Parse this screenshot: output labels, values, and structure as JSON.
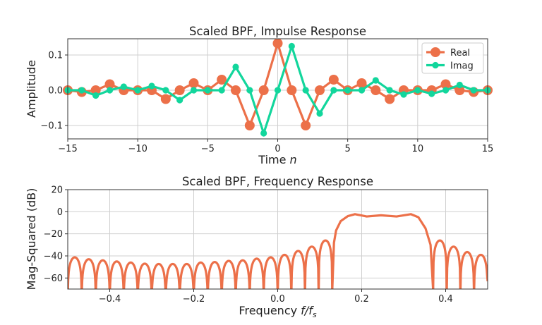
{
  "chart_data": [
    {
      "type": "line",
      "title": "Scaled BPF, Impulse Response",
      "xlabel_text": "Time",
      "xlabel_var": "n",
      "ylabel": "Amplitude",
      "xlim": [
        -15,
        15
      ],
      "ylim": [
        -0.138,
        0.146
      ],
      "xticks": [
        -15,
        -10,
        -5,
        0,
        5,
        10,
        15
      ],
      "xtick_labels": [
        "−15",
        "−10",
        "−5",
        "0",
        "5",
        "10",
        "15"
      ],
      "yticks": [
        -0.1,
        0.0,
        0.1
      ],
      "ytick_labels": [
        "−0.1",
        "0.0",
        "0.1"
      ],
      "grid": true,
      "legend_position": "top-right",
      "x": [
        -15,
        -14,
        -13,
        -12,
        -11,
        -10,
        -9,
        -8,
        -7,
        -6,
        -5,
        -4,
        -3,
        -2,
        -1,
        0,
        1,
        2,
        3,
        4,
        5,
        6,
        7,
        8,
        9,
        10,
        11,
        12,
        13,
        14,
        15
      ],
      "series": [
        {
          "name": "Real",
          "color": "#EC7049",
          "marker_size": "large",
          "values": [
            0,
            -0.005,
            0,
            0.017,
            0,
            0,
            0,
            -0.025,
            0,
            0.02,
            0,
            0.03,
            0,
            -0.1,
            0,
            0.133,
            0,
            -0.1,
            0,
            0.03,
            0,
            0.02,
            0,
            -0.025,
            0,
            0,
            0,
            0.017,
            0,
            -0.005,
            0
          ]
        },
        {
          "name": "Imag",
          "color": "#12D69C",
          "marker_size": "small",
          "values": [
            0,
            0,
            -0.015,
            0,
            0.01,
            0,
            0.012,
            0,
            -0.028,
            0,
            0,
            0,
            0.066,
            0,
            -0.122,
            0,
            0.125,
            0,
            -0.066,
            0,
            0,
            0,
            0.028,
            0,
            -0.012,
            0,
            -0.01,
            0,
            0.015,
            0,
            0
          ]
        }
      ]
    },
    {
      "type": "line",
      "title": "Scaled BPF, Frequency Response",
      "xlabel_text": "Frequency",
      "xlabel_var": "f/f",
      "xlabel_sub": "s",
      "ylabel": "Mag-Squared (dB)",
      "xlim": [
        -0.5,
        0.5
      ],
      "ylim": [
        -70,
        20
      ],
      "xticks": [
        -0.4,
        -0.2,
        0.0,
        0.2,
        0.4
      ],
      "xtick_labels": [
        "−0.4",
        "−0.2",
        "0.0",
        "0.2",
        "0.4"
      ],
      "yticks": [
        20,
        0,
        -20,
        -40,
        -60
      ],
      "ytick_labels": [
        "20",
        "0",
        "−20",
        "−40",
        "−60"
      ],
      "grid": true,
      "color": "#EC7049",
      "sidelobes": [
        {
          "start": -0.5,
          "end": -0.4667,
          "peak_db": -41.3
        },
        {
          "start": -0.4667,
          "end": -0.4333,
          "peak_db": -43
        },
        {
          "start": -0.4333,
          "end": -0.4,
          "peak_db": -44
        },
        {
          "start": -0.4,
          "end": -0.3667,
          "peak_db": -45
        },
        {
          "start": -0.3667,
          "end": -0.3333,
          "peak_db": -46
        },
        {
          "start": -0.3333,
          "end": -0.3,
          "peak_db": -47
        },
        {
          "start": -0.3,
          "end": -0.2667,
          "peak_db": -47.3
        },
        {
          "start": -0.2667,
          "end": -0.2333,
          "peak_db": -47.3
        },
        {
          "start": -0.2333,
          "end": -0.2,
          "peak_db": -47.3
        },
        {
          "start": -0.2,
          "end": -0.1667,
          "peak_db": -46
        },
        {
          "start": -0.1667,
          "end": -0.1333,
          "peak_db": -45.5
        },
        {
          "start": -0.1333,
          "end": -0.1,
          "peak_db": -44.5
        },
        {
          "start": -0.1,
          "end": -0.0667,
          "peak_db": -44
        },
        {
          "start": -0.0667,
          "end": -0.0333,
          "peak_db": -42.5
        },
        {
          "start": -0.0333,
          "end": 0.0,
          "peak_db": -41.3
        },
        {
          "start": 0.0,
          "end": 0.0325,
          "peak_db": -39
        },
        {
          "start": 0.0325,
          "end": 0.065,
          "peak_db": -35.5
        },
        {
          "start": 0.065,
          "end": 0.0975,
          "peak_db": -31.6
        },
        {
          "start": 0.0975,
          "end": 0.13,
          "peak_db": -26
        },
        {
          "start": 0.37,
          "end": 0.4025,
          "peak_db": -26
        },
        {
          "start": 0.4025,
          "end": 0.435,
          "peak_db": -31.6
        },
        {
          "start": 0.435,
          "end": 0.4675,
          "peak_db": -36.5
        },
        {
          "start": 0.4675,
          "end": 0.5,
          "peak_db": -39,
          "cut_db": -63
        }
      ],
      "passband": {
        "f": [
          0.13,
          0.134,
          0.139,
          0.15,
          0.167,
          0.184,
          0.212,
          0.246,
          0.283,
          0.317,
          0.335,
          0.352,
          0.364,
          0.37
        ],
        "db": [
          -70,
          -28,
          -17,
          -8.5,
          -4,
          -2.2,
          -4.3,
          -3.2,
          -4.3,
          -2.2,
          -5,
          -15,
          -30,
          -70
        ]
      }
    }
  ]
}
